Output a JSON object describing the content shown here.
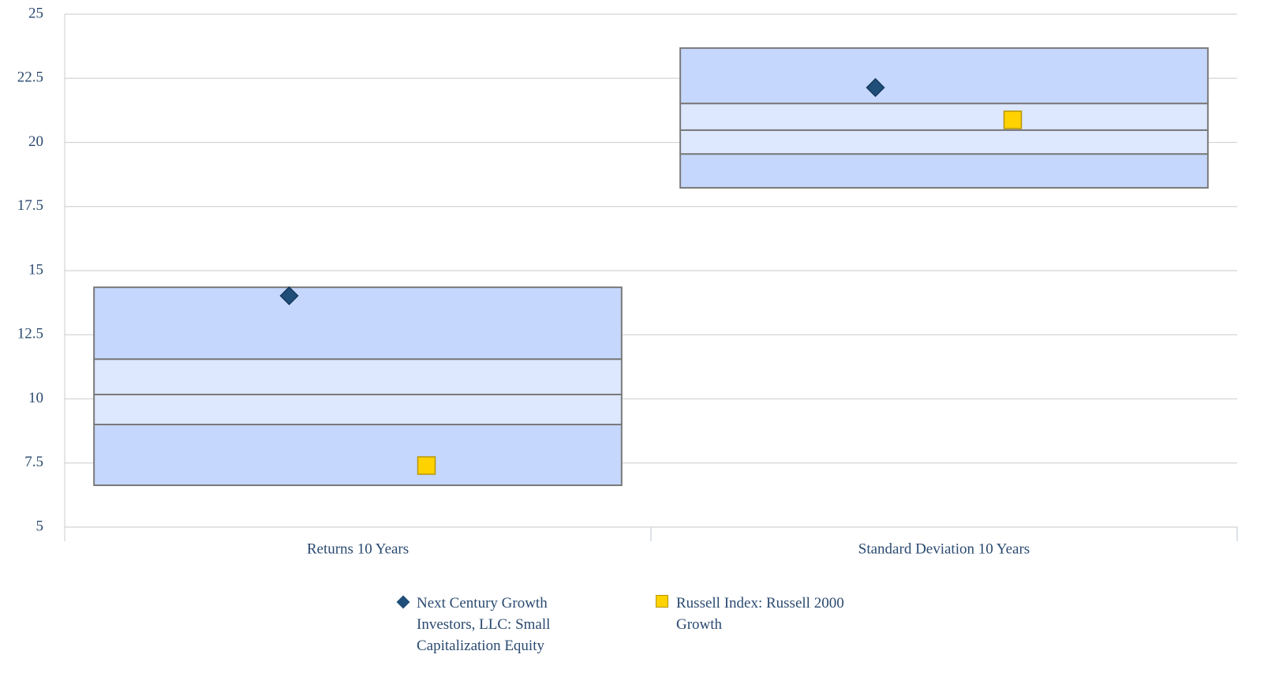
{
  "chart_data": {
    "type": "floating-box",
    "categories": [
      "Returns 10 Years",
      "Standard Deviation 10 Years"
    ],
    "boxes": [
      {
        "low": 6.63,
        "q1": 9.0,
        "median": 10.17,
        "q3": 11.55,
        "high": 14.35
      },
      {
        "low": 18.23,
        "q1": 19.55,
        "median": 20.48,
        "q3": 21.52,
        "high": 23.68
      }
    ],
    "band_colors": {
      "outer": "#c5d7fd",
      "inner": "#dde7fe",
      "stroke": "#7a7a7a"
    },
    "series": [
      {
        "name": "Next Century Growth Investors, LLC: Small Capitalization Equity",
        "color": "#1f4e79",
        "marker": "diamond",
        "values": [
          14.02,
          22.14
        ]
      },
      {
        "name": "Russell Index: Russell 2000 Growth",
        "color": "#ffd200",
        "marker": "square",
        "values": [
          7.4,
          20.88
        ]
      }
    ],
    "ylim": [
      5,
      25
    ],
    "yticks": [
      5,
      7.5,
      10,
      12.5,
      15,
      17.5,
      20,
      22.5,
      25
    ],
    "grid": true,
    "legend": "bottom"
  }
}
